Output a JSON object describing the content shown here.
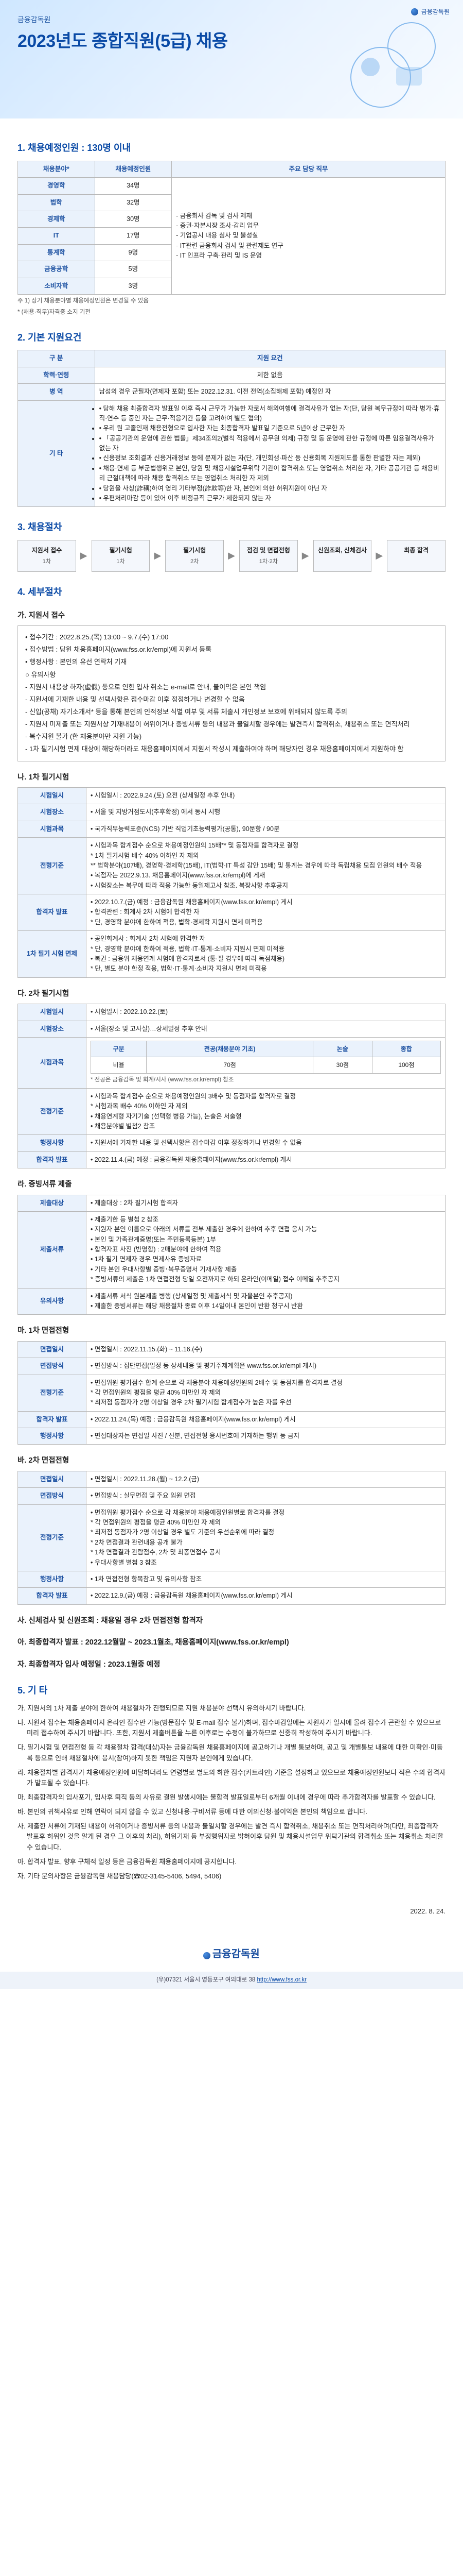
{
  "meta": {
    "org_name": "금융감독원",
    "date_issued": "2022. 8. 24.",
    "footer_addr": "(우)07321 서울시 영등포구 여의대로 38 ",
    "footer_url": "http://www.fss.or.kr"
  },
  "hero": {
    "sub": "금융감독원",
    "title": "2023년도 종합직원(5급) 채용"
  },
  "sec1": {
    "heading": "1. 채용예정인원 : 130명 이내",
    "cols": [
      "채용분야*",
      "채용예정인원",
      "주요 담당 직무"
    ],
    "rows": [
      [
        "경영학",
        "34명",
        "- 금융회사 감독 및 검사 제재"
      ],
      [
        "법학",
        "32명",
        "- 중권·자본시장 조사·감리 업무"
      ],
      [
        "경제학",
        "30명",
        "- 기업공시 내용 심사 및 불성실"
      ],
      [
        "IT",
        "17명",
        "- IT관련 금융회사 검사 및 관련제도 연구"
      ],
      [
        "통계학",
        "9명",
        "- IT 인프라 구축·관리 및 IS 운영"
      ],
      [
        "금융공학",
        "5명",
        ""
      ],
      [
        "소비자학",
        "3명",
        ""
      ]
    ],
    "note1": "주 1) 상기 채용분야별 채용예정인원은 변경될 수 있음",
    "note2": "   * (채용·직무)자격증 소지 기전"
  },
  "sec2": {
    "heading": "2. 기본 지원요건",
    "cols": [
      "구 분",
      "지원 요건"
    ],
    "rows": [
      {
        "k": "학력·연령",
        "v": "제한 없음"
      },
      {
        "k": "병 역",
        "v": "남성의 경우 군필자(면제자 포함) 또는 2022.12.31. 이전 전역(소집해제 포함) 예정인 자"
      }
    ],
    "longcell": {
      "k": "기 타",
      "lines": [
        "• 당해 채용 최종합격자 발표일 이후 즉시 근무가 가능한 자로서 해외여행에 결격사유가 없는 자(단, 당원 복무규정에 따라 병가·휴직·연수 등 중인 자는 근무·적응기간 등을 고려하여 별도 협의)",
        "• 우리 원 고졸인재 채용전형으로 입사한 자는 최종합격자 발표일 기준으로 5년이상 근무한 자",
        "• 「공공기관의 운영에 관한 법률」제34조의2(벌칙 적용에서 공무원 의제) 규정 및 동 운영에 관한 규정에 따른 임용결격사유가 없는 자",
        "• 신용정보 조회결과 신용거래정보 등에 문제가 없는 자(단, 개인회생·파산 등 신용회복 지원제도를 통한 판별한 자는 제외)",
        "• 채용·면제 등 부군법행위로 본인, 당원 및 채용시설업무위탁 기관이 합격취소 또는 영업취소 처리한 자, 기타 공공기관 등 채용비리 근절대책에 따라 채용 합격취소 또는 영업취소 처리한 자 제외",
        "• 당원을 사칭(詐稱)하여 영리 기타부정(詐欺等)한 자, 본인에 의한 허위지원이 아닌 자",
        "• 우편처리마감 등이 있어 이후 비정규직 근무가 제한되지 않는 자"
      ]
    }
  },
  "sec3": {
    "heading": "3. 채용절차",
    "steps": [
      {
        "t": "지원서 접수",
        "s": "1차"
      },
      {
        "t": "필기시험",
        "s": "1차"
      },
      {
        "t": "필기시험",
        "s": "2차"
      },
      {
        "t": "점검 및 면접전형",
        "s": "1차·2차"
      },
      {
        "t": "신원조회, 신체검사",
        "s": ""
      },
      {
        "t": "최종 합격",
        "s": ""
      }
    ]
  },
  "sec4": {
    "heading": "4. 세부절차"
  },
  "sub_a": {
    "title": "가. 지원서 접수",
    "lines": [
      "• 접수기간 : 2022.8.25.(목) 13:00 ~ 9.7.(수) 17:00",
      "• 접수방법 : 당원 채용홈페이지(www.fss.or.kr/empl)에 지원서 등록",
      "• 행정사항 : 본인의 유선 연락처 기재",
      "○ 유의사항",
      "  - 지원서 내용상 하자(虛假) 등으로 인한 입사 취소는 e-mail로 안내, 불이익은 본인 책임",
      "  - 지원서에 기재한 내용 및 선택사항은 접수마감 이후 정정하거나 변경할 수 없음",
      "  - 신입(공채) 자기소개서* 등을 통해 본인의 인적정보 식별 여부 및 서류 체출시 개인정보 보호에 위배되지 않도록 주의",
      "  - 지원서 미제출 또는 지원서상 기재내용이 허위이거나 증빙서류 등의 내용과 불일치할 경우에는 발견즉시 합격취소, 채용취소 또는 면직처리",
      "  - 복수지원 불가 (한 채용분야만 지원 가능)",
      "  - 1차 필기시험 면제 대상에 해당하더라도 채용홈페이지에서 지원서 작성시 제출하여야 하며 해당자인 경우 채용홈페이지에서 지원하야 함"
    ]
  },
  "sub_b": {
    "title": "나. 1차 필기시험",
    "rows": [
      {
        "k": "시험일시",
        "v": "• 시험일시 : 2022.9.24.(토) 오전 (상세일정 추후 안내)"
      },
      {
        "k": "시험장소",
        "v": "• 서울 및 지방거점도시(추후확정) 에서 동시 시행"
      },
      {
        "k": "시험과목",
        "v": "• 국가직무능력표준(NCS) 기반 직업기초능력평가(공통), 90문항 / 90분"
      },
      {
        "k": "전형기준",
        "v": [
          "• 시험과목 합계점수 순으로 채용예정인원의 15배** 및 동점자를 합격자로 결정",
          "  * 1차 필기시험 배수 40% 이하인 자 제외",
          "  ** 법학분야(107배), 경영학·경제학(15배), IT(법학·IT 특성 감안 15배) 및 통계는 경우에 따라 독립채용 모집 인원의 배수 적용",
          "• 복점자는 2022.9.13. 채용홈페이지(www.fss.or.kr/empl)에 게재",
          "• 시험장소는 복무에 따라 적용 가능한 동일제고사 참조. 복장사항 추후공지"
        ]
      },
      {
        "k": "합격자 발표",
        "v": [
          "• 2022.10.7.(금) 예정 : 금융감독원 채용홈페이지(www.fss.or.kr/empl) 게시",
          "• 합격관련 : 회계사 2차 시험에 합격한 자",
          "  * 단, 경영학 분야에 한하여 적용, 법학·경제학 지원시 면제 미적용"
        ]
      },
      {
        "k": "1차 필기 시험 면제",
        "v": [
          "• 공인회계사 : 회계사 2차 시험에 합격한 자",
          "  * 단, 경영학 분야에 한하여 적용, 법학·IT·통계·소비자 지원시 면제 미적용",
          "• 복권 : 금융위 채용연계 시험에 합격자로서 (통·필 경우에 따라 독점채용)",
          "  * 단, 별도 분야 한정 적용, 법학·IT·통계·소비자 지원시 면제 미적용"
        ]
      }
    ]
  },
  "sub_c": {
    "title": "다. 2차 필기시험",
    "rows": [
      {
        "k": "시험일시",
        "v": "• 시험일시 : 2022.10.22.(토)"
      },
      {
        "k": "시험장소",
        "v": "• 서울(장소 및 고사실)…상세일정 추후 안내"
      },
      {
        "k": "시험과목",
        "table": {
          "cols": [
            "구분",
            "전공(채용분야 기초)",
            "논술",
            "종합"
          ],
          "rows": [
            [
              "비율",
              "70점",
              "30점",
              "100점"
            ]
          ],
          "note": "* 전공은 금융감독 및 회계/시사 (www.fss.or.kr/empl) 참조"
        }
      },
      {
        "k": "전형기준",
        "v": [
          "• 시험과목 합계점수 순으로 채용예정인원의 3배수 및 동점자를 합격자로 결정",
          "  * 시험과목 배수 40% 이하인 자 제외",
          "• 채용연계형 자기기술 (선택형 병용 가능), 논술은 서술형",
          "• 채용분야별 별첨2 참조"
        ]
      },
      {
        "k": "행정사항",
        "v": "• 지원서에 기재한 내용 및 선택사항은 접수마감 이후 정정하거나 변경할 수 없음"
      },
      {
        "k": "합격자 발표",
        "v": "• 2022.11.4.(금) 예정 : 금융감독원 채용홈페이지(www.fss.or.kr/empl) 게시"
      }
    ]
  },
  "sub_d": {
    "title": "라. 증빙서류 제출",
    "rows": [
      {
        "k": "제출대상",
        "v": "• 제출대상 : 2차 필기시험 합격자"
      },
      {
        "k": "제출서류",
        "v": [
          "• 제출기한 등 별첨 2 참조",
          "• 지원자 본인 이름으로 아래의 서류를 전부 제출한 경우에 한하여 추후 면접 응시 가능",
          "• 본인 및 가족관계증명(또는 주민등록등본) 1부",
          "• 합격자표 사진 (반명함) : 2매분야에 한하여 적용",
          "• 1차 필기 면제자 경우 면제사유 증빙자료",
          "• 기타 본인 우대사항별 증빙･복무증명서 기재사항 제출",
          "  * 증빙서류의 제출은 1차 면접전형 당일 오전까지로 하되 온라인(이메일) 접수 이메일 추후공지"
        ]
      },
      {
        "k": "유의사항",
        "v": [
          "• 제출서류 서식 원본제출 병행 (상세일정 및 제출서식 및 자율본인 추후공지)",
          "• 제출한 증빙서류는 해당 채용절차 종료 이후 14일이내 본인이 반환 청구시 반환"
        ]
      }
    ]
  },
  "sub_e": {
    "title": "마. 1차 면접전형",
    "rows": [
      {
        "k": "면접일시",
        "v": "• 면접일시 : 2022.11.15.(화) ~ 11.16.(수)"
      },
      {
        "k": "면접방식",
        "v": "• 면접방식 : 집단면접(일정 등 상세내용 및 평가주제계획은 www.fss.or.kr/empl 게시)"
      },
      {
        "k": "전형기준",
        "v": [
          "• 면접위원 평가점수 합계 순으로 각 채용분야 채용예정인원의 2배수 및 동점자를 합격자로 결정",
          "  * 각 면접위원의 평점을 평균 40% 미만인 자 제외",
          "  * 최저점 동점자가 2명 이상일 경우 2차 필기시험 합계점수가 높은 자를 우선"
        ]
      },
      {
        "k": "합격자 발표",
        "v": "• 2022.11.24.(목) 예정 : 금융감독원 채용홈페이지(www.fss.or.kr/empl) 게시"
      },
      {
        "k": "행정사항",
        "v": "• 면접대상자는 면접일 사진 / 신분, 면접전형 응시번호에 기재하는 행위 등 금지"
      }
    ]
  },
  "sub_f": {
    "title": "바. 2차 면접전형",
    "rows": [
      {
        "k": "면접일시",
        "v": "• 면접일시 : 2022.11.28.(월) ~ 12.2.(금)"
      },
      {
        "k": "면접방식",
        "v": "• 면접방식 : 실무면접 및 주요 임원 면접"
      },
      {
        "k": "전형기준",
        "v": [
          "• 면접위원 평가점수 순으로 각 채용분야 채용예정인원별로 합격자를 결정",
          "  * 각 면접위원의 평점을 평균 40% 미만인 자 제외",
          "  * 최저점 동점자가 2명 이상일 경우 별도 기준의 우선순위에 따라 결정",
          "  * 2차 면접결과 관련내용 공개 불가",
          "  * 1차 면접결과 관람점수, 2차 및 최종면접수 공시",
          "• 우대사항별 별첨 3 참조"
        ]
      },
      {
        "k": "행정사항",
        "v": "• 1차 면접전형 항목참고 및 유의사항 참조"
      },
      {
        "k": "합격자 발표",
        "v": "• 2022.12.9.(금) 예정 : 금융감독원 채용홈페이지(www.fss.or.kr/empl) 게시"
      }
    ]
  },
  "sub_g": {
    "title": "사. 신체검사 및 신원조회 : 채용일 경우 2차 면접전형 합격자"
  },
  "sub_h": {
    "title": "아. 최종합격자 발표 : 2022.12월말 ~ 2023.1월초, 채용홈페이지(www.fss.or.kr/empl)"
  },
  "sub_i": {
    "title": "자. 최종합격자 입사 예정일 : 2023.1월중 예정"
  },
  "sec5": {
    "heading": "5. 기 타",
    "lines": [
      "가. 지원서의 1차 제출 분야에 한하여 채용절차가 진행되므로 지원 채용분야 선택시 유의하시기 바랍니다.",
      "나. 지원서 접수는 채용홈페이지 온라인 접수만 가능(방문접수 및 E-mail 접수 불가)하며, 접수마감일에는 지원자가 일시에 몰려 접수가 곤란할 수 있으므로 미리 접수하여 주시기 바랍니다. 또한, 지원서 제출버튼을 누른 이후로는 수정이 불가하므로 신중히 작성하여 주시기 바랍니다.",
      "다. 필기시험 및 면접전형 등 각 채용절차 합격(대상)자는 금융감독원 채용홈페이지에 공고하기나 개별 통보하며, 공고 및 개별통보 내용에 대한 미확인·미등록 등으로 인해 채용절차에 응시(참여)하지 못한 책임은 지원자 본인에게 있습니다.",
      "라. 채용절차별 합격자가 채용예정인원에 미달하더라도 연령별로 별도의 하한 점수(커트라인) 기준을 설정하고 있으므로 채용예정인원보다 적은 수의 합격자가 발표될 수 있습니다.",
      "마. 최종합격자의 입사포기, 입사후 퇴직 등의 사유로 결원 발생시에는 불합격 발표일로부터 6개월 이내에 경우에 따라 추가합격자를 발표할 수 있습니다.",
      "바. 본인의 귀책사유로 인해 연락이 되지 않을 수 있고 신청내용·구비서류 등에 대한 이의신청·불이익은 본인의 책임으로 합니다.",
      "사. 제출한 서류에 기재된 내용이 허위이거나 증빙서류 등의 내용과 불일치할 경우에는 발견 즉시 합격취소, 채용취소 또는 면직처리하며(다만, 최종합격자 발표후 허위인 것을 알게 된 경우 그 이후의 처리), 허위기재 등 부정행위자로 밝혀이후 당원 및 채용시설업무 위탁기관의 합격취소 또는 채용취소 처리할 수 있습니다.",
      "아. 합격자 발표, 향후 구체적 일정 등은 금융감독원 채용홈페이지에 공지합니다.",
      "자. 기타 문의사항은 금융감독원 채용담당(☎02-3145-5406, 5494, 5406)"
    ]
  }
}
